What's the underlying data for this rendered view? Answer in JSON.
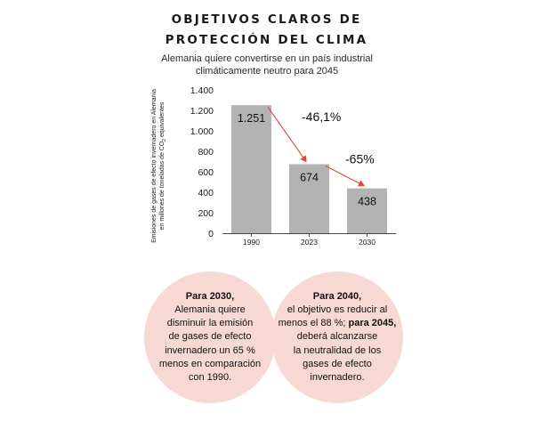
{
  "header": {
    "title_line1": "OBJETIVOS CLAROS DE",
    "title_line2": "PROTECCIÓN DEL CLIMA",
    "subtitle_line1": "Alemania quiere convertirse en un país industrial",
    "subtitle_line2": "climáticamente neutro para 2045"
  },
  "chart_data": {
    "type": "bar",
    "categories": [
      "1990",
      "2023",
      "2030"
    ],
    "values": [
      1251,
      674,
      438
    ],
    "value_labels": [
      "1.251",
      "674",
      "438"
    ],
    "ylabel_line1": "Emisiones de gases de efecto invernadero en Alemania",
    "ylabel_line2_pre": "en millones de toneladas de CO",
    "ylabel_line2_sub": "2",
    "ylabel_line2_post": " equivalentes",
    "ylim": [
      0,
      1400
    ],
    "yticks": [
      0,
      200,
      400,
      600,
      800,
      1000,
      1200,
      1400
    ],
    "ytick_labels": [
      "0",
      "200",
      "400",
      "600",
      "800",
      "1.000",
      "1.200",
      "1.400"
    ],
    "annotations": [
      {
        "text": "-46,1%",
        "from": "1990",
        "to": "2023"
      },
      {
        "text": "-65%",
        "from": "2023",
        "to": "2030"
      }
    ],
    "grid": false,
    "bar_color": "#b3b3b3",
    "arrow_color": "#e0453a"
  },
  "circles": [
    {
      "lines": [
        [
          {
            "t": "Para 2030,",
            "b": true
          }
        ],
        [
          {
            "t": "Alemania quiere",
            "b": false
          }
        ],
        [
          {
            "t": "disminuir la emisión",
            "b": false
          }
        ],
        [
          {
            "t": "de gases de efecto",
            "b": false
          }
        ],
        [
          {
            "t": "invernadero un 65 %",
            "b": false
          }
        ],
        [
          {
            "t": "menos en comparación",
            "b": false
          }
        ],
        [
          {
            "t": "con 1990.",
            "b": false
          }
        ]
      ]
    },
    {
      "lines": [
        [
          {
            "t": "Para 2040,",
            "b": true
          }
        ],
        [
          {
            "t": "el objetivo es reducir al",
            "b": false
          }
        ],
        [
          {
            "t": "menos el 88 %; ",
            "b": false
          },
          {
            "t": "para 2045,",
            "b": true
          }
        ],
        [
          {
            "t": "deberá alcanzarse",
            "b": false
          }
        ],
        [
          {
            "t": "la neutralidad de los",
            "b": false
          }
        ],
        [
          {
            "t": "gases de efecto",
            "b": false
          }
        ],
        [
          {
            "t": "invernadero.",
            "b": false
          }
        ]
      ]
    }
  ],
  "colors": {
    "circle_fill": "#f8d8d2"
  }
}
